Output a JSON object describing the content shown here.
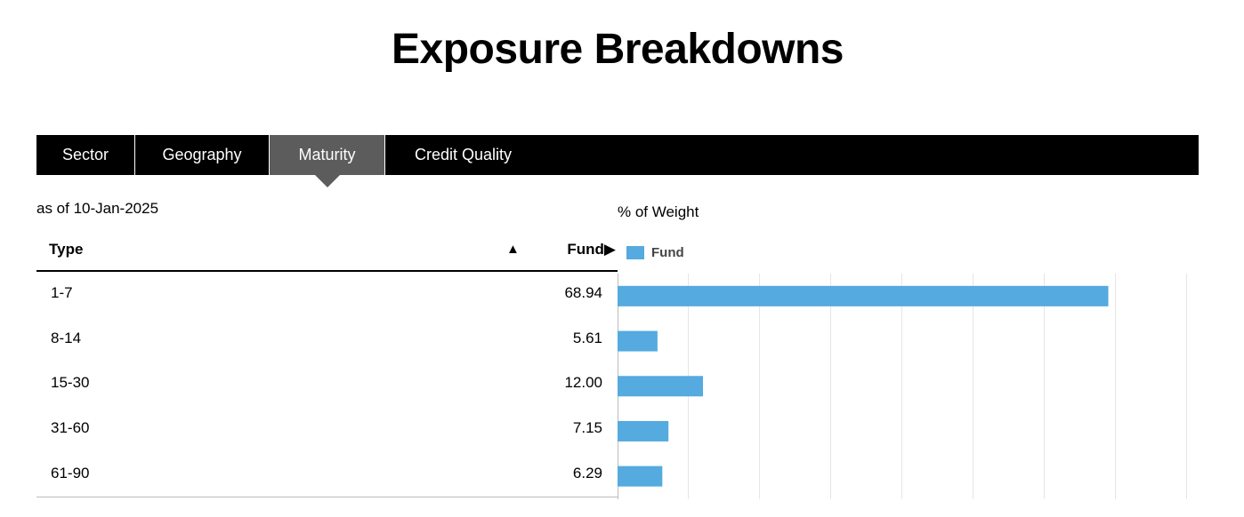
{
  "page": {
    "title": "Exposure Breakdowns"
  },
  "tabs": [
    {
      "label": "Sector",
      "active": false
    },
    {
      "label": "Geography",
      "active": false
    },
    {
      "label": "Maturity",
      "active": true
    },
    {
      "label": "Credit Quality",
      "active": false
    }
  ],
  "table": {
    "as_of": "as of 10-Jan-2025",
    "headers": {
      "type": "Type",
      "sort_indicator": "▲",
      "fund": "Fund▶"
    },
    "rows": [
      {
        "type": "1-7",
        "fund": "68.94"
      },
      {
        "type": "8-14",
        "fund": "5.61"
      },
      {
        "type": "15-30",
        "fund": "12.00"
      },
      {
        "type": "31-60",
        "fund": "7.15"
      },
      {
        "type": "61-90",
        "fund": "6.29"
      }
    ]
  },
  "chart_label": "% of Weight",
  "legend": {
    "label": "Fund",
    "color": "#55aadf"
  },
  "colors": {
    "tab_bar": "#000000",
    "active_tab": "#5c5c5c",
    "bar": "#55aadf",
    "grid": "#e6e6e6"
  },
  "chart_data": {
    "type": "bar",
    "orientation": "horizontal",
    "categories": [
      "1-7",
      "8-14",
      "15-30",
      "31-60",
      "61-90"
    ],
    "series": [
      {
        "name": "Fund",
        "values": [
          68.94,
          5.61,
          12.0,
          7.15,
          6.29
        ]
      }
    ],
    "xlim": [
      0,
      80
    ],
    "grid": true,
    "legend_position": "top-left"
  }
}
